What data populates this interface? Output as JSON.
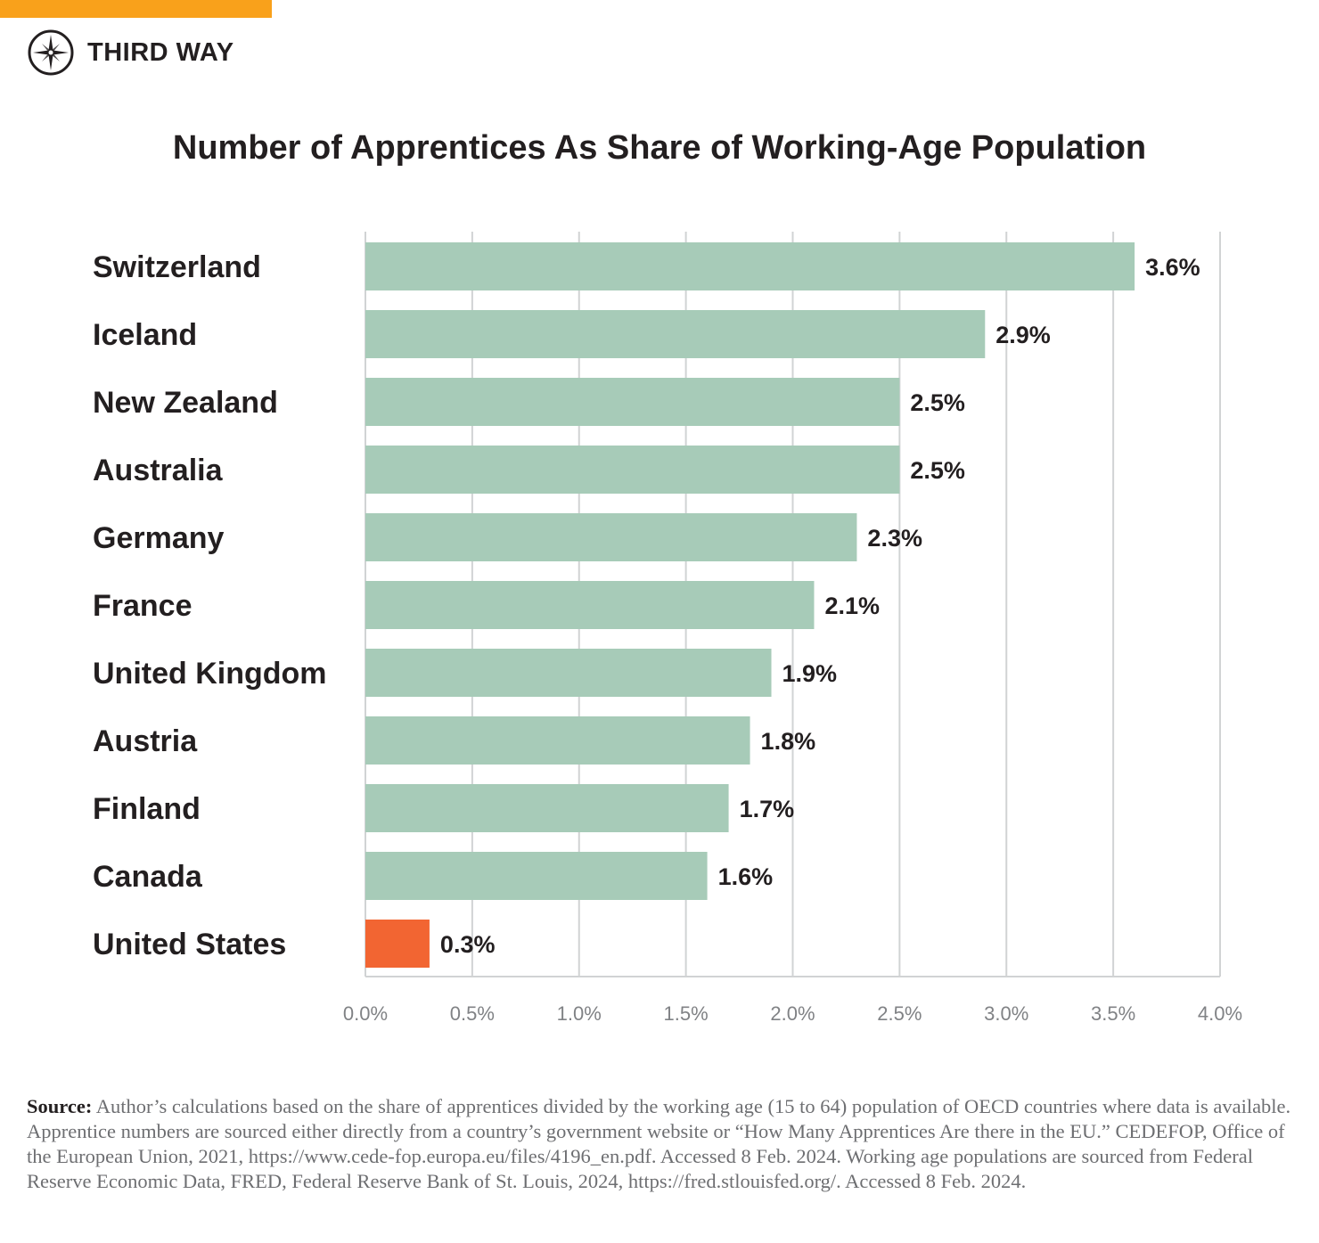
{
  "brand": {
    "name": "THIRD WAY",
    "accent_color": "#f9a11b"
  },
  "chart_data": {
    "type": "bar",
    "orientation": "horizontal",
    "title": "Number of Apprentices As Share of Working-Age Population",
    "categories": [
      "Switzerland",
      "Iceland",
      "New Zealand",
      "Australia",
      "Germany",
      "France",
      "United Kingdom",
      "Austria",
      "Finland",
      "Canada",
      "United States"
    ],
    "values": [
      3.6,
      2.9,
      2.5,
      2.5,
      2.3,
      2.1,
      1.9,
      1.8,
      1.7,
      1.6,
      0.3
    ],
    "data_labels": [
      "3.6%",
      "2.9%",
      "2.5%",
      "2.5%",
      "2.3%",
      "2.1%",
      "1.9%",
      "1.8%",
      "1.7%",
      "1.6%",
      "0.3%"
    ],
    "xlim": [
      0,
      4.0
    ],
    "xticks": [
      0,
      0.5,
      1.0,
      1.5,
      2.0,
      2.5,
      3.0,
      3.5,
      4.0
    ],
    "xtick_labels": [
      "0.0%",
      "0.5%",
      "1.0%",
      "1.5%",
      "2.0%",
      "2.5%",
      "3.0%",
      "3.5%",
      "4.0%"
    ],
    "grid": "vertical",
    "colors": {
      "default": "#a7cbb8",
      "highlight": "#f26532",
      "highlight_category": "United States"
    }
  },
  "source": {
    "label": "Source:",
    "text": "Author’s calculations based on the share of apprentices divided by the working age (15 to 64) population of OECD countries where data is available. Apprentice numbers are sourced either directly from a country’s government website or “How Many Apprentices Are there in the EU.” CEDEFOP, Office of the European Union, 2021, https://www.cede-fop.europa.eu/files/4196_en.pdf. Accessed 8 Feb. 2024. Working age populations are sourced from Federal Reserve Economic Data, FRED, Federal Reserve Bank of St. Louis, 2024, https://fred.stlouisfed.org/. Accessed 8 Feb. 2024."
  }
}
